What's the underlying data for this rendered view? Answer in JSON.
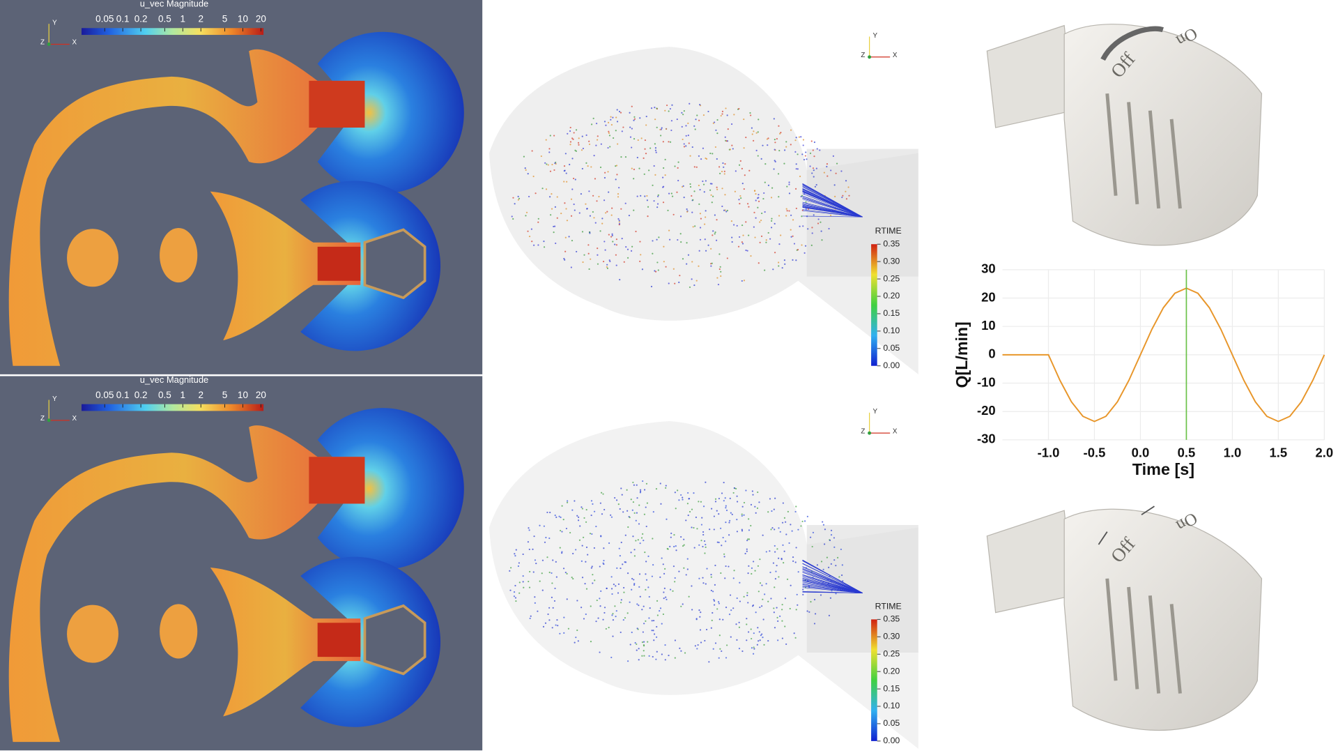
{
  "panels": {
    "velocity_colorbars": [
      {
        "title": "u_vec Magnitude",
        "ticks": [
          0.05,
          0.1,
          0.2,
          0.5,
          1,
          2,
          5,
          10,
          20
        ],
        "log_scale": true
      },
      {
        "title": "u_vec Magnitude",
        "ticks": [
          0.05,
          0.1,
          0.2,
          0.5,
          1,
          2,
          5,
          10,
          20
        ],
        "log_scale": true
      }
    ],
    "rtime_colorbars": [
      {
        "title": "RTIME",
        "ticks": [
          {
            "value": 0,
            "label": "0.00"
          },
          0.05,
          {
            "value": 0.1,
            "label": "0.10"
          },
          0.15,
          {
            "value": 0.2,
            "label": "0.20"
          },
          0.25,
          {
            "value": 0.3,
            "label": "0.30"
          },
          0.35
        ]
      },
      {
        "title": "RTIME",
        "ticks": [
          {
            "value": 0,
            "label": "0.00"
          },
          0.05,
          {
            "value": 0.1,
            "label": "0.10"
          },
          0.15,
          {
            "value": 0.2,
            "label": "0.20"
          },
          0.25,
          {
            "value": 0.3,
            "label": "0.30"
          },
          0.35
        ]
      }
    ],
    "triads": [
      {
        "labels": [
          "Y",
          "Z",
          "X"
        ]
      },
      {
        "labels": [
          "Y",
          "Z",
          "X"
        ]
      },
      {
        "labels": [
          "Y",
          "Z",
          "X"
        ]
      },
      {
        "labels": [
          "Y",
          "Z",
          "X"
        ]
      }
    ],
    "valves": [
      {
        "labels": [
          "Off",
          "On"
        ]
      },
      {
        "labels": [
          "Off",
          "On"
        ]
      }
    ]
  },
  "chart_data": {
    "type": "line",
    "xlabel": "Time [s]",
    "ylabel": "Q[L/min]",
    "x": [
      -1.5,
      -1.0,
      -0.875,
      -0.75,
      -0.625,
      -0.5,
      -0.375,
      -0.25,
      -0.125,
      0,
      0.125,
      0.25,
      0.375,
      0.5,
      0.625,
      0.75,
      0.875,
      1.0,
      1.125,
      1.25,
      1.375,
      1.5,
      1.625,
      1.75,
      1.875,
      2.0
    ],
    "series": [
      {
        "color": "#e8962a",
        "values": [
          0,
          0,
          -9.0,
          -16.6,
          -21.7,
          -23.5,
          -21.7,
          -16.6,
          -9.0,
          0,
          9.0,
          16.6,
          21.7,
          23.5,
          21.7,
          16.6,
          9.0,
          0,
          -9.0,
          -16.6,
          -21.7,
          -23.5,
          -21.7,
          -16.6,
          -9.0,
          0
        ]
      }
    ],
    "markers": [
      {
        "x": 0.5,
        "color": "#6cc24a"
      }
    ],
    "xlim": [
      -1.5,
      2.0
    ],
    "ylim": [
      -30,
      30
    ],
    "xticks": [
      {
        "value": -1,
        "label": "-1.0"
      },
      -0.5,
      {
        "value": 0,
        "label": "0.0"
      },
      0.5,
      {
        "value": 1,
        "label": "1.0"
      },
      1.5,
      {
        "value": 2,
        "label": "2.0"
      }
    ],
    "yticks": [
      -30,
      -20,
      -10,
      0,
      10,
      20,
      30
    ],
    "grid": true
  }
}
